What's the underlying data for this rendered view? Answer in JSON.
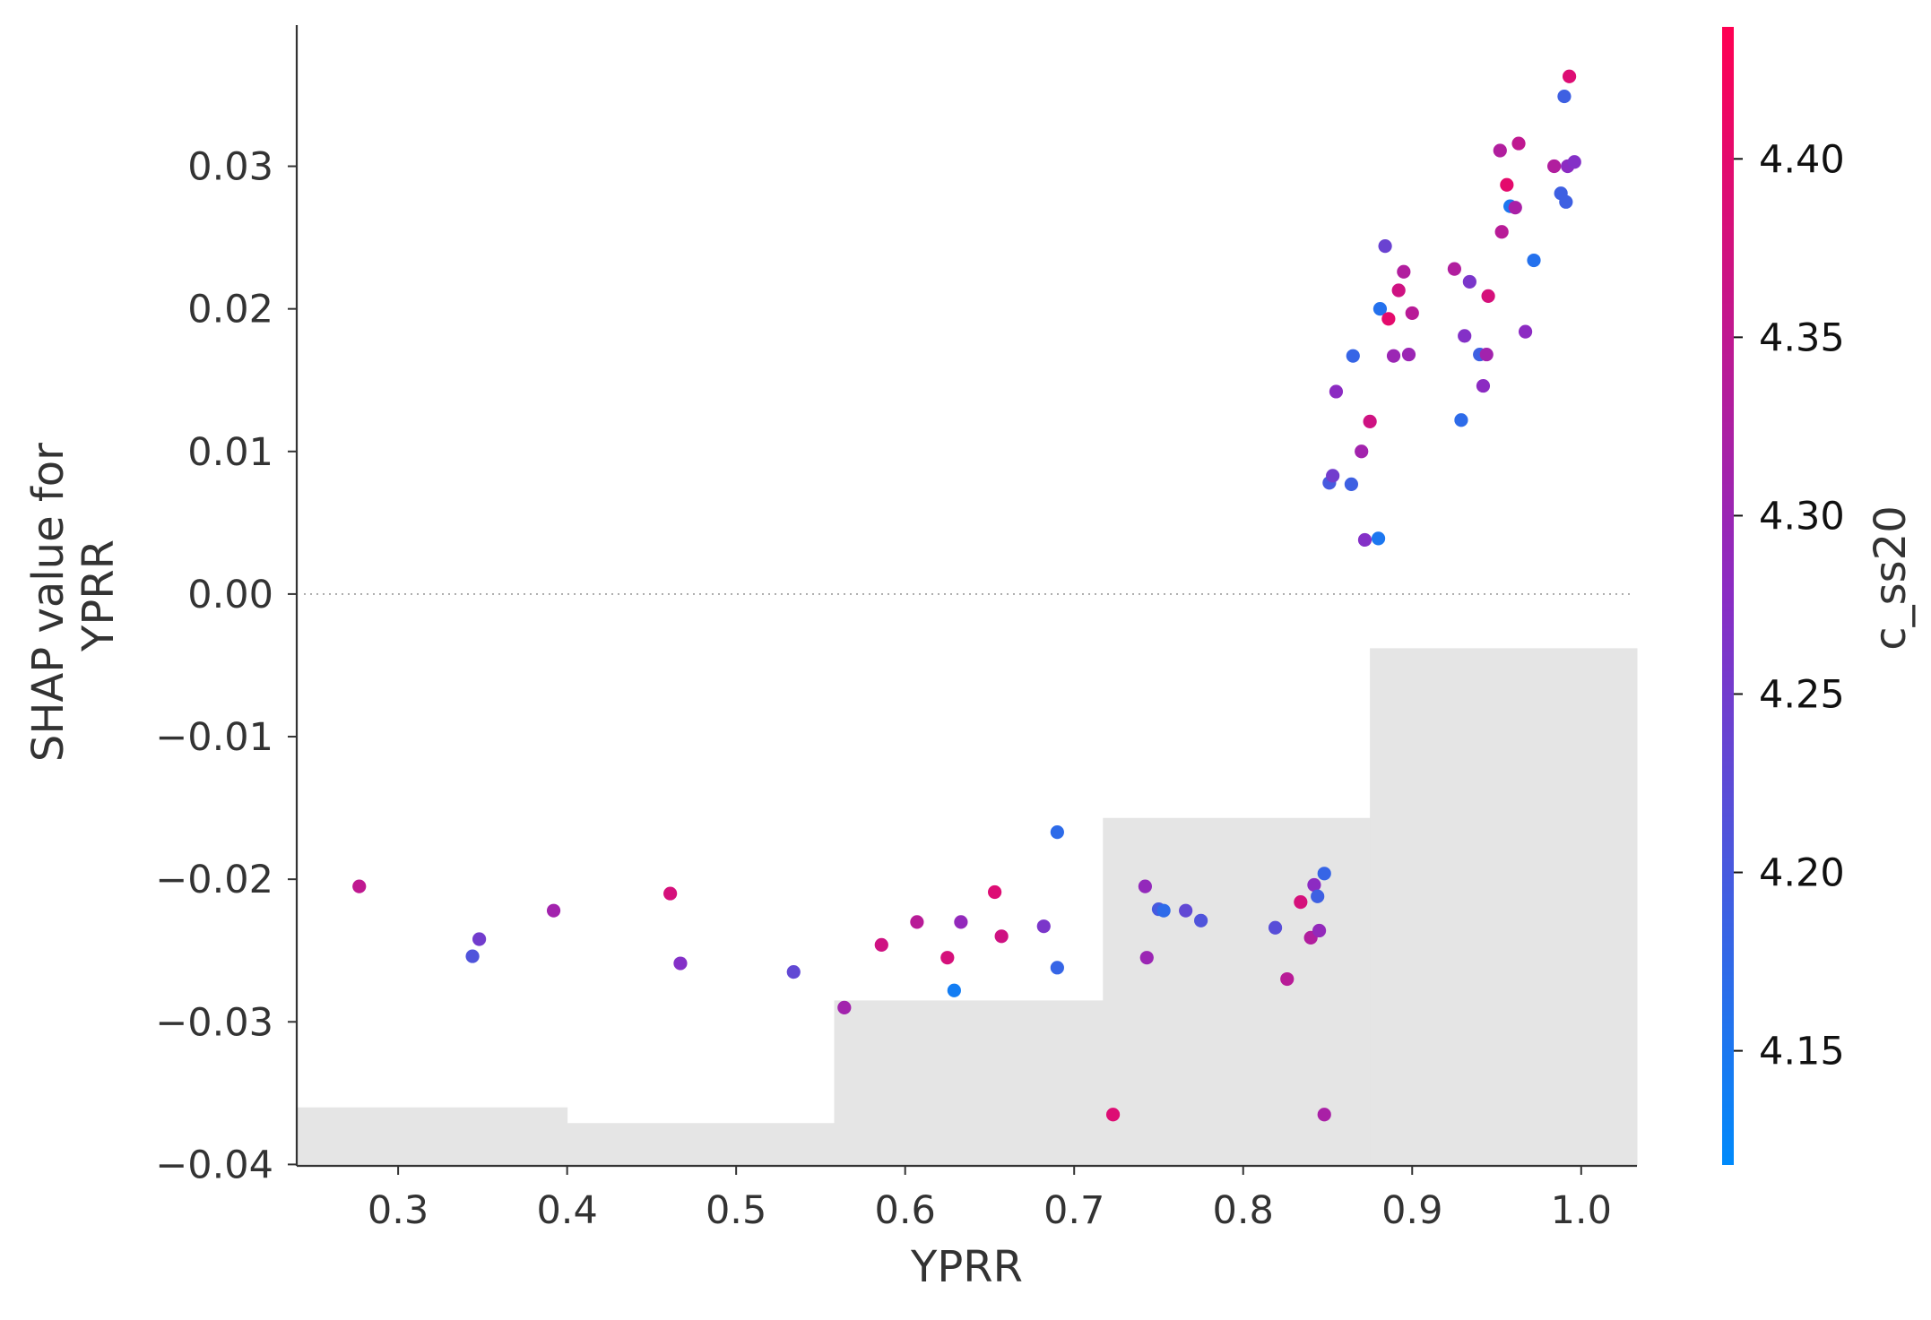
{
  "chart_data": {
    "type": "scatter",
    "xlabel": "YPRR",
    "ylabel": [
      "SHAP value for",
      "YPRR"
    ],
    "xlim": [
      0.24,
      1.033
    ],
    "ylim": [
      -0.0401,
      0.0399
    ],
    "x_ticks": [
      0.3,
      0.4,
      0.5,
      0.6,
      0.7,
      0.8,
      0.9,
      1.0
    ],
    "x_tick_labels": [
      "0.3",
      "0.4",
      "0.5",
      "0.6",
      "0.7",
      "0.8",
      "0.9",
      "1.0"
    ],
    "y_ticks": [
      -0.04,
      -0.03,
      -0.02,
      -0.01,
      0.0,
      0.01,
      0.02,
      0.03
    ],
    "y_tick_labels": [
      "−0.04",
      "−0.03",
      "−0.02",
      "−0.01",
      "0.00",
      "0.01",
      "0.02",
      "0.03"
    ],
    "zero_line": 0.0,
    "grid": false,
    "histogram_background": {
      "color": "#e5e5e5",
      "bins": [
        {
          "x0": 0.24,
          "x1": 0.4,
          "top": -0.036
        },
        {
          "x0": 0.4,
          "x1": 0.558,
          "top": -0.0371
        },
        {
          "x0": 0.558,
          "x1": 0.717,
          "top": -0.0285
        },
        {
          "x0": 0.717,
          "x1": 0.875,
          "top": -0.0157
        },
        {
          "x0": 0.875,
          "x1": 1.033,
          "top": -0.0038
        }
      ]
    },
    "colorbar": {
      "label": "c_ss20",
      "range": [
        4.118,
        4.437
      ],
      "ticks": [
        4.15,
        4.2,
        4.25,
        4.3,
        4.35,
        4.4
      ],
      "tick_labels": [
        "4.15",
        "4.20",
        "4.25",
        "4.30",
        "4.35",
        "4.40"
      ],
      "color_low": "#008afb",
      "color_mid": "#8a2cc4",
      "color_high": "#ff0052"
    },
    "points": [
      {
        "x": 0.277,
        "y": -0.0205,
        "c": 4.35
      },
      {
        "x": 0.344,
        "y": -0.0254,
        "c": 4.21
      },
      {
        "x": 0.348,
        "y": -0.0242,
        "c": 4.25
      },
      {
        "x": 0.392,
        "y": -0.0222,
        "c": 4.31
      },
      {
        "x": 0.461,
        "y": -0.021,
        "c": 4.38
      },
      {
        "x": 0.467,
        "y": -0.0259,
        "c": 4.27
      },
      {
        "x": 0.534,
        "y": -0.0265,
        "c": 4.23
      },
      {
        "x": 0.564,
        "y": -0.029,
        "c": 4.31
      },
      {
        "x": 0.586,
        "y": -0.0246,
        "c": 4.37
      },
      {
        "x": 0.607,
        "y": -0.023,
        "c": 4.34
      },
      {
        "x": 0.625,
        "y": -0.0255,
        "c": 4.38
      },
      {
        "x": 0.629,
        "y": -0.0278,
        "c": 4.14
      },
      {
        "x": 0.633,
        "y": -0.023,
        "c": 4.29
      },
      {
        "x": 0.653,
        "y": -0.0209,
        "c": 4.39
      },
      {
        "x": 0.657,
        "y": -0.024,
        "c": 4.37
      },
      {
        "x": 0.682,
        "y": -0.0233,
        "c": 4.26
      },
      {
        "x": 0.69,
        "y": -0.0167,
        "c": 4.17
      },
      {
        "x": 0.69,
        "y": -0.0262,
        "c": 4.18
      },
      {
        "x": 0.723,
        "y": -0.0365,
        "c": 4.39
      },
      {
        "x": 0.742,
        "y": -0.0205,
        "c": 4.29
      },
      {
        "x": 0.743,
        "y": -0.0255,
        "c": 4.3
      },
      {
        "x": 0.75,
        "y": -0.0221,
        "c": 4.2
      },
      {
        "x": 0.753,
        "y": -0.0222,
        "c": 4.17
      },
      {
        "x": 0.766,
        "y": -0.0222,
        "c": 4.23
      },
      {
        "x": 0.775,
        "y": -0.0229,
        "c": 4.21
      },
      {
        "x": 0.819,
        "y": -0.0234,
        "c": 4.22
      },
      {
        "x": 0.826,
        "y": -0.027,
        "c": 4.34
      },
      {
        "x": 0.834,
        "y": -0.0216,
        "c": 4.38
      },
      {
        "x": 0.84,
        "y": -0.0241,
        "c": 4.33
      },
      {
        "x": 0.842,
        "y": -0.0204,
        "c": 4.28
      },
      {
        "x": 0.844,
        "y": -0.0212,
        "c": 4.19
      },
      {
        "x": 0.845,
        "y": -0.0236,
        "c": 4.29
      },
      {
        "x": 0.848,
        "y": -0.0196,
        "c": 4.18
      },
      {
        "x": 0.848,
        "y": -0.0365,
        "c": 4.32
      },
      {
        "x": 0.851,
        "y": 0.0078,
        "c": 4.2
      },
      {
        "x": 0.853,
        "y": 0.0083,
        "c": 4.25
      },
      {
        "x": 0.855,
        "y": 0.0142,
        "c": 4.28
      },
      {
        "x": 0.864,
        "y": 0.0077,
        "c": 4.19
      },
      {
        "x": 0.865,
        "y": 0.0167,
        "c": 4.18
      },
      {
        "x": 0.87,
        "y": 0.01,
        "c": 4.31
      },
      {
        "x": 0.872,
        "y": 0.0038,
        "c": 4.27
      },
      {
        "x": 0.875,
        "y": 0.0121,
        "c": 4.37
      },
      {
        "x": 0.88,
        "y": 0.0039,
        "c": 4.15
      },
      {
        "x": 0.881,
        "y": 0.02,
        "c": 4.16
      },
      {
        "x": 0.884,
        "y": 0.0244,
        "c": 4.24
      },
      {
        "x": 0.886,
        "y": 0.0193,
        "c": 4.4
      },
      {
        "x": 0.889,
        "y": 0.0167,
        "c": 4.3
      },
      {
        "x": 0.892,
        "y": 0.0213,
        "c": 4.37
      },
      {
        "x": 0.895,
        "y": 0.0226,
        "c": 4.33
      },
      {
        "x": 0.898,
        "y": 0.0168,
        "c": 4.3
      },
      {
        "x": 0.9,
        "y": 0.0197,
        "c": 4.34
      },
      {
        "x": 0.925,
        "y": 0.0228,
        "c": 4.33
      },
      {
        "x": 0.929,
        "y": 0.0122,
        "c": 4.17
      },
      {
        "x": 0.931,
        "y": 0.0181,
        "c": 4.27
      },
      {
        "x": 0.934,
        "y": 0.0219,
        "c": 4.26
      },
      {
        "x": 0.94,
        "y": 0.0168,
        "c": 4.19
      },
      {
        "x": 0.942,
        "y": 0.0146,
        "c": 4.28
      },
      {
        "x": 0.944,
        "y": 0.0168,
        "c": 4.31
      },
      {
        "x": 0.945,
        "y": 0.0209,
        "c": 4.38
      },
      {
        "x": 0.952,
        "y": 0.0311,
        "c": 4.33
      },
      {
        "x": 0.953,
        "y": 0.0254,
        "c": 4.34
      },
      {
        "x": 0.956,
        "y": 0.0287,
        "c": 4.4
      },
      {
        "x": 0.958,
        "y": 0.0272,
        "c": 4.15
      },
      {
        "x": 0.961,
        "y": 0.0271,
        "c": 4.32
      },
      {
        "x": 0.963,
        "y": 0.0316,
        "c": 4.35
      },
      {
        "x": 0.967,
        "y": 0.0184,
        "c": 4.28
      },
      {
        "x": 0.972,
        "y": 0.0234,
        "c": 4.16
      },
      {
        "x": 0.984,
        "y": 0.03,
        "c": 4.33
      },
      {
        "x": 0.988,
        "y": 0.0281,
        "c": 4.19
      },
      {
        "x": 0.99,
        "y": 0.0349,
        "c": 4.19
      },
      {
        "x": 0.991,
        "y": 0.0275,
        "c": 4.19
      },
      {
        "x": 0.992,
        "y": 0.03,
        "c": 4.28
      },
      {
        "x": 0.993,
        "y": 0.0363,
        "c": 4.39
      },
      {
        "x": 0.996,
        "y": 0.0303,
        "c": 4.27
      }
    ]
  }
}
